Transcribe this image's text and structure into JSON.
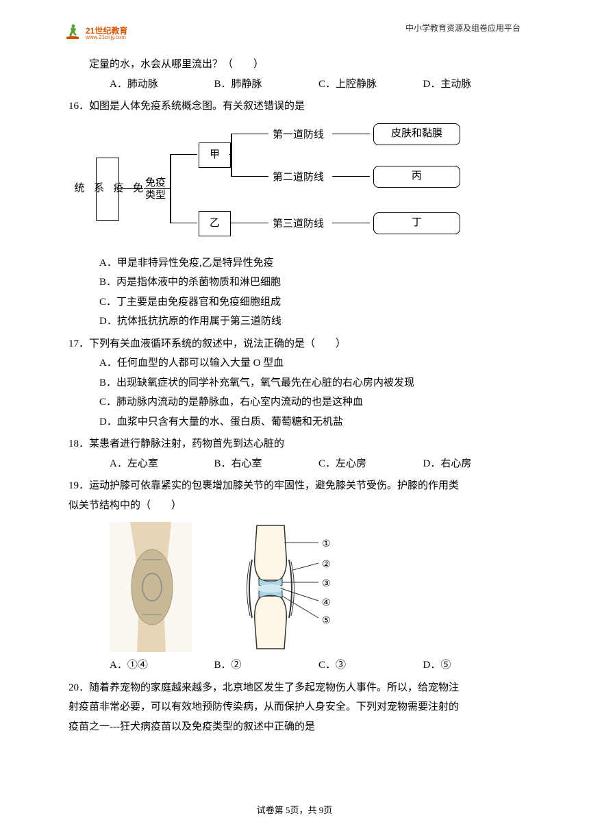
{
  "header": {
    "right": "中小学教育资源及组卷应用平台"
  },
  "logo": {
    "main": "21世纪教育",
    "sub": "www.21cnjy.com"
  },
  "q15cont": {
    "text": "定量的水，水会从哪里流出？（　　）",
    "options": {
      "a": "A．肺动脉",
      "b": "B．肺静脉",
      "c": "C．上腔静脉",
      "d": "D．主动脉"
    }
  },
  "q16": {
    "stem": "16．如图是人体免疫系统概念图。有关叙述错误的是",
    "diagram": {
      "root": "免\n疫\n系\n统",
      "mid": "免疫\n类型",
      "jia": "甲",
      "yi": "乙",
      "line1": "第一道防线",
      "line2": "第二道防线",
      "line3": "第三道防线",
      "box1": "皮肤和黏膜",
      "box2": "丙",
      "box3": "丁"
    },
    "options": {
      "a": "A．甲是非特异性免疫,乙是特异性免疫",
      "b": "B．丙是指体液中的杀菌物质和淋巴细胞",
      "c": "C．丁主要是由免疫器官和免疫细胞组成",
      "d": "D．抗体抵抗抗原的作用属于第三道防线"
    }
  },
  "q17": {
    "stem": "17．下列有关血液循环系统的叙述中，说法正确的是（　　）",
    "options": {
      "a": "A．任何血型的人都可以输入大量 O 型血",
      "b": "B．出现缺氧症状的同学补充氧气，氧气最先在心脏的右心房内被发现",
      "c": "C．肺动脉内流动的是静脉血，右心室内流动的也是这种血",
      "d": "D．血浆中只含有大量的水、蛋白质、葡萄糖和无机盐"
    }
  },
  "q18": {
    "stem": "18．某患者进行静脉注射，药物首先到达心脏的",
    "options": {
      "a": "A．左心室",
      "b": "B．右心室",
      "c": "C．左心房",
      "d": "D．右心房"
    }
  },
  "q19": {
    "stem1": "19．运动护膝可依靠紧实的包裹增加膝关节的牢固性，避免膝关节受伤。护膝的作用类",
    "stem2": "似关节结构中的（　　）",
    "options": {
      "a": "A．①④",
      "b": "B．②",
      "c": "C．③",
      "d": "D．⑤"
    },
    "labels": {
      "l1": "①",
      "l2": "②",
      "l3": "③",
      "l4": "④",
      "l5": "⑤"
    }
  },
  "q20": {
    "stem1": "20．随着养宠物的家庭越来越多，北京地区发生了多起宠物伤人事件。所以，给宠物注",
    "stem2": "射疫苗非常必要，可以有效地预防传染病，从而保护人身安全。下列对宠物需要注射的",
    "stem3": "疫苗之一---狂犬病疫苗以及免疫类型的叙述中正确的是"
  },
  "footer": "试卷第 5页，共 9页"
}
